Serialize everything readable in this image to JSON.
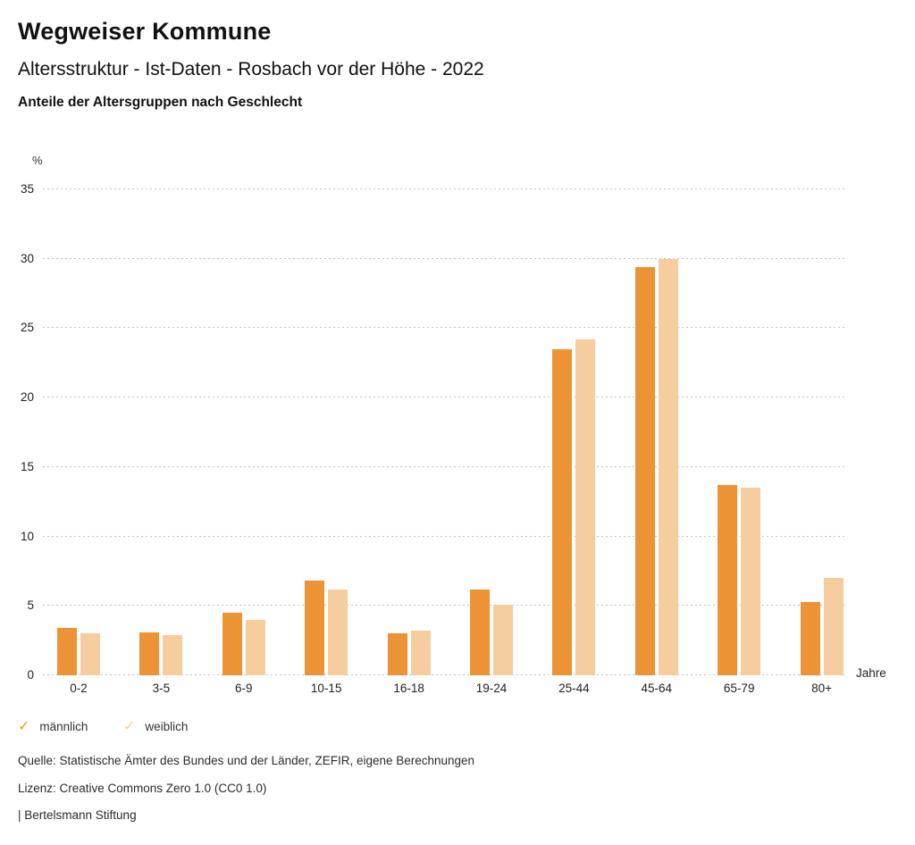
{
  "header": {
    "title": "Wegweiser Kommune",
    "subtitle": "Altersstruktur - Ist-Daten - Rosbach vor der Höhe - 2022",
    "chart_heading": "Anteile der Altersgruppen nach Geschlecht"
  },
  "chart_data": {
    "type": "bar",
    "title": "Anteile der Altersgruppen nach Geschlecht",
    "y_unit_label": "%",
    "x_unit_label": "Jahre",
    "categories": [
      "0-2",
      "3-5",
      "6-9",
      "10-15",
      "16-18",
      "19-24",
      "25-44",
      "45-64",
      "65-79",
      "80+"
    ],
    "series": [
      {
        "name": "männlich",
        "color": "#EC9435",
        "values": [
          3.4,
          3.1,
          4.5,
          6.8,
          3.0,
          6.2,
          23.5,
          29.4,
          13.7,
          5.3
        ]
      },
      {
        "name": "weiblich",
        "color": "#F5CD9E",
        "values": [
          3.0,
          2.9,
          4.0,
          6.2,
          3.2,
          5.1,
          24.2,
          30.0,
          13.5,
          7.0
        ]
      }
    ],
    "ylim": [
      0,
      35
    ],
    "yticks": [
      0,
      5,
      10,
      15,
      20,
      25,
      30,
      35
    ],
    "grid": "horizontal-dotted",
    "legend_position": "bottom-left"
  },
  "legend": {
    "items": [
      {
        "label": "männlich",
        "checkmark": "✓",
        "color": "#EC9435"
      },
      {
        "label": "weiblich",
        "checkmark": "✓",
        "color": "#F5CD9E"
      }
    ]
  },
  "footer": {
    "source": "Quelle: Statistische Ämter des Bundes und der Länder, ZEFIR, eigene Berechnungen",
    "license": "Lizenz: Creative Commons Zero 1.0 (CC0 1.0)",
    "attribution": "| Bertelsmann Stiftung"
  }
}
